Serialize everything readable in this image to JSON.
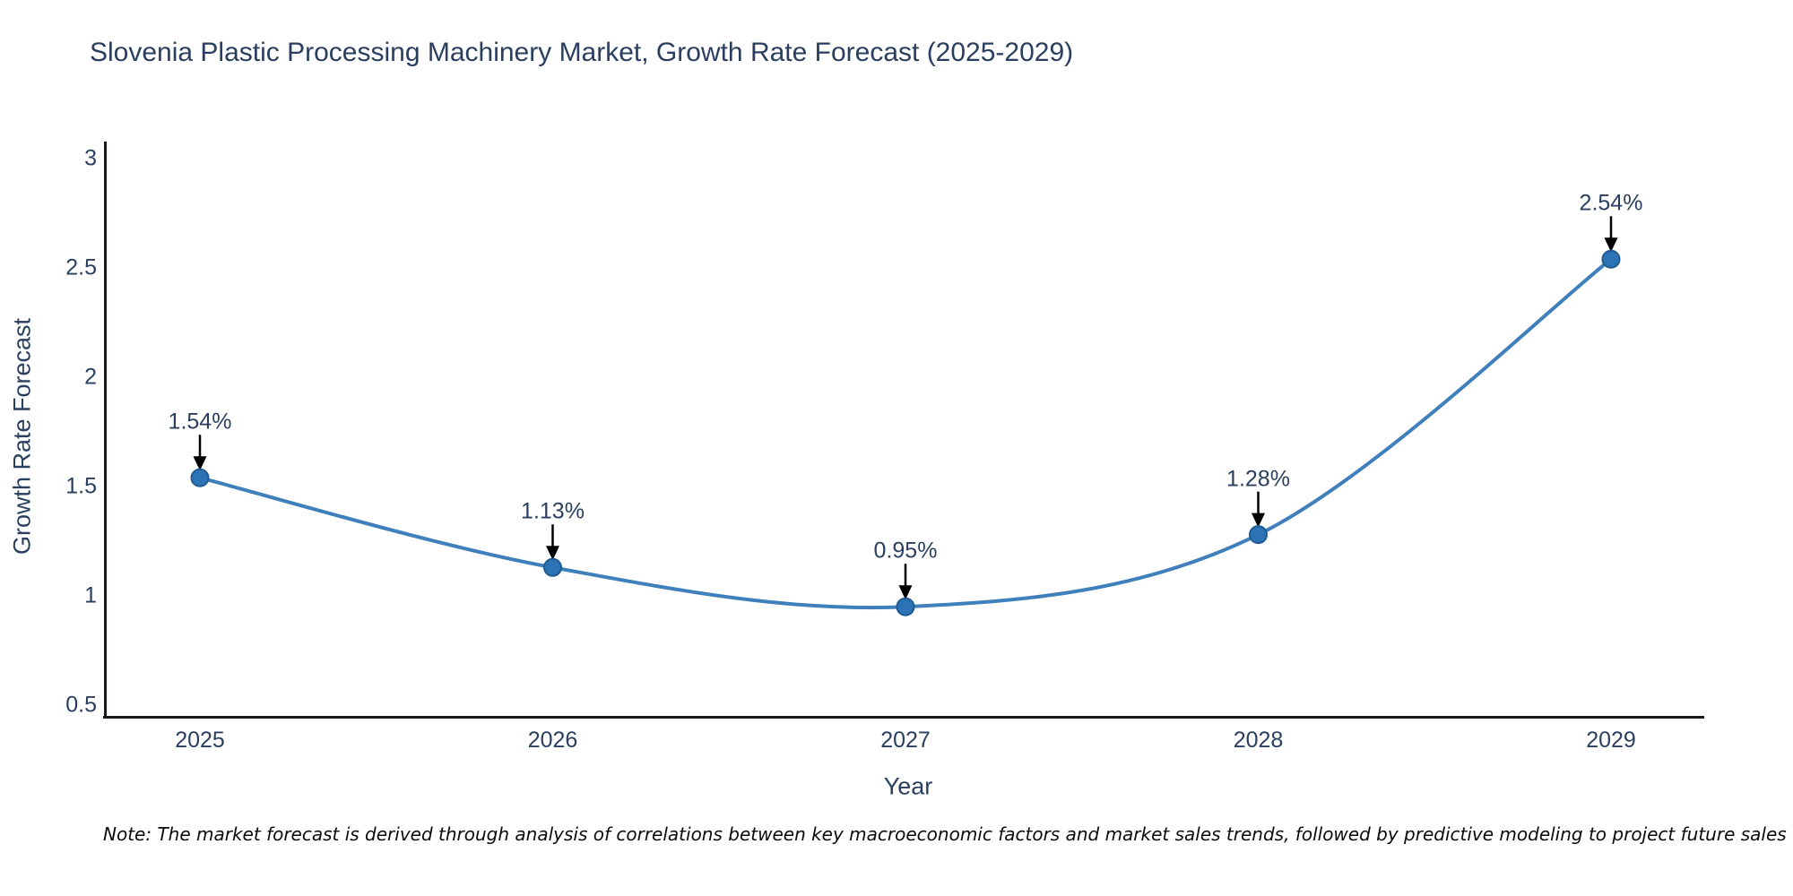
{
  "title": "Slovenia Plastic Processing Machinery Market, Growth Rate Forecast (2025-2029)",
  "note": "Note: The market forecast is derived through analysis of correlations between key macroeconomic factors and market sales trends, followed by predictive modeling to project future sales",
  "chart_data": {
    "type": "line",
    "x": [
      2025,
      2026,
      2027,
      2028,
      2029
    ],
    "series": [
      {
        "name": "Growth Rate Forecast",
        "values": [
          1.54,
          1.13,
          0.95,
          1.28,
          2.54
        ]
      }
    ],
    "point_labels": [
      "1.54%",
      "1.13%",
      "0.95%",
      "1.28%",
      "2.54%"
    ],
    "title": "Slovenia Plastic Processing Machinery Market, Growth Rate Forecast (2025-2029)",
    "xlabel": "Year",
    "ylabel": "Growth Rate Forecast",
    "xticks": [
      "2025",
      "2026",
      "2027",
      "2028",
      "2029"
    ],
    "yticks": [
      0.5,
      1,
      1.5,
      2,
      2.5,
      3
    ],
    "ylim": [
      0.5,
      3.1
    ],
    "grid": false,
    "legend_position": "none",
    "line_shape": "spline",
    "colors": {
      "line": "#3e7fbc",
      "marker_fill": "#2c73b6",
      "marker_edge": "#1f5a92",
      "axis_line": "#161a1e",
      "text": "#2a3f5f",
      "arrow": "#000000",
      "note_text": "#0b0b0b",
      "background": "#ffffff"
    }
  }
}
